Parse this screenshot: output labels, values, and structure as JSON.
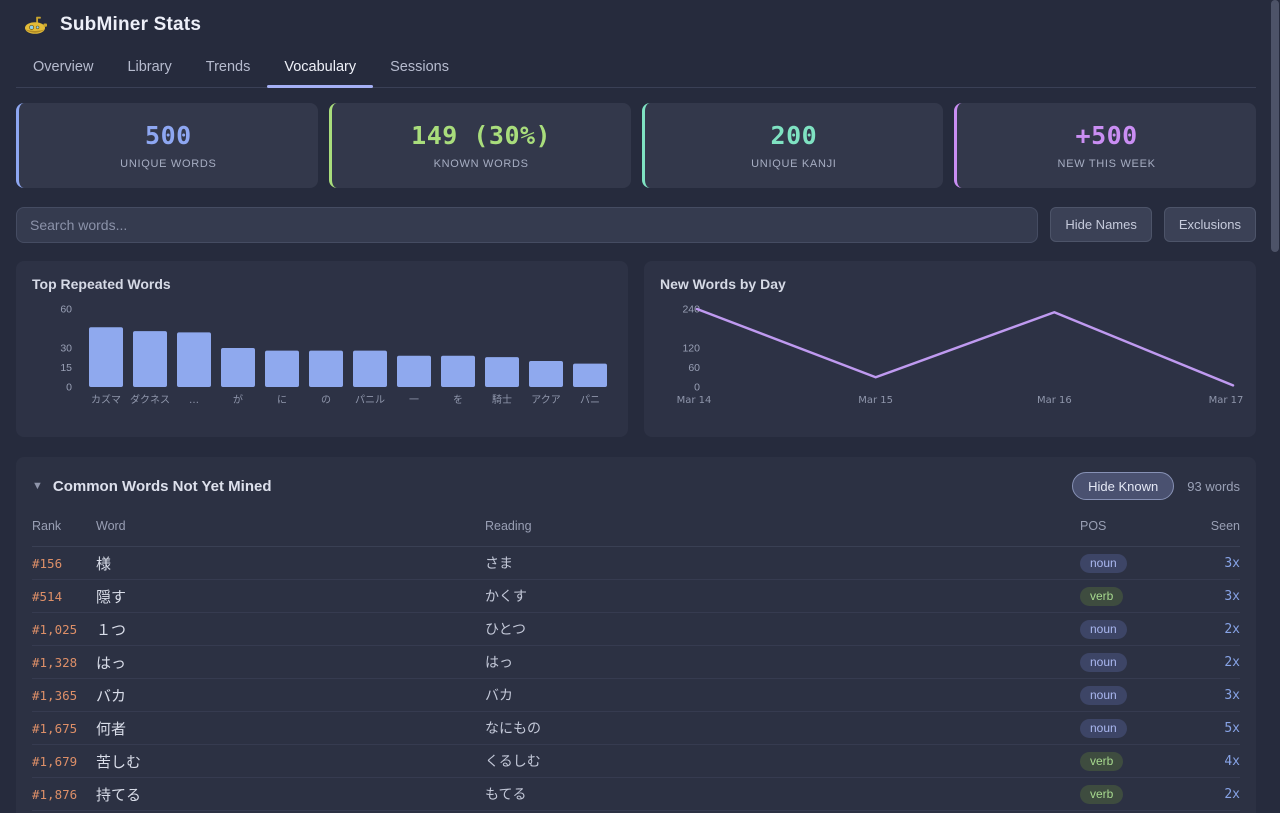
{
  "header": {
    "title": "SubMiner Stats",
    "icon": "submarine-icon"
  },
  "tabs": [
    {
      "label": "Overview",
      "active": false
    },
    {
      "label": "Library",
      "active": false
    },
    {
      "label": "Trends",
      "active": false
    },
    {
      "label": "Vocabulary",
      "active": true
    },
    {
      "label": "Sessions",
      "active": false
    }
  ],
  "stats": [
    {
      "value": "500",
      "label": "UNIQUE WORDS",
      "accent": "#8ea7f2"
    },
    {
      "value": "149 (30%)",
      "label": "KNOWN WORDS",
      "accent": "#a9dd7c"
    },
    {
      "value": "200",
      "label": "UNIQUE KANJI",
      "accent": "#7fe2c2"
    },
    {
      "value": "+500",
      "label": "NEW THIS WEEK",
      "accent": "#ca8ef3"
    }
  ],
  "search": {
    "placeholder": "Search words...",
    "hide_names": "Hide Names",
    "exclusions": "Exclusions"
  },
  "chart_data": [
    {
      "type": "bar",
      "title": "Top Repeated Words",
      "categories": [
        "カズマ",
        "ダクネス",
        "…",
        "が",
        "に",
        "の",
        "パニル",
        "一",
        "を",
        "騎士",
        "アクア",
        "パニ"
      ],
      "values": [
        46,
        43,
        42,
        30,
        28,
        28,
        28,
        24,
        24,
        23,
        20,
        18
      ],
      "yticks": [
        0,
        15,
        30,
        60
      ],
      "ylim": [
        0,
        60
      ],
      "xlabel": "",
      "ylabel": "",
      "grid": false,
      "legend": "none",
      "bar_color": "#8fa9ee"
    },
    {
      "type": "line",
      "title": "New Words by Day",
      "x": [
        "Mar 14",
        "Mar 15",
        "Mar 16",
        "Mar 17"
      ],
      "values": [
        240,
        30,
        230,
        5
      ],
      "yticks": [
        0,
        60,
        120,
        240
      ],
      "ylim": [
        0,
        240
      ],
      "xlabel": "",
      "ylabel": "",
      "grid": false,
      "legend": "none",
      "line_color": "#bf9af0"
    }
  ],
  "table": {
    "collapse_icon": "▼",
    "title": "Common Words Not Yet Mined",
    "hide_known": "Hide Known",
    "count": "93 words",
    "columns": [
      "Rank",
      "Word",
      "Reading",
      "POS",
      "Seen"
    ],
    "rows": [
      {
        "rank": "#156",
        "word": "様",
        "reading": "さま",
        "pos": "noun",
        "seen": "3x"
      },
      {
        "rank": "#514",
        "word": "隠す",
        "reading": "かくす",
        "pos": "verb",
        "seen": "3x"
      },
      {
        "rank": "#1,025",
        "word": "１つ",
        "reading": "ひとつ",
        "pos": "noun",
        "seen": "2x"
      },
      {
        "rank": "#1,328",
        "word": "はっ",
        "reading": "はっ",
        "pos": "noun",
        "seen": "2x"
      },
      {
        "rank": "#1,365",
        "word": "バカ",
        "reading": "バカ",
        "pos": "noun",
        "seen": "3x"
      },
      {
        "rank": "#1,675",
        "word": "何者",
        "reading": "なにもの",
        "pos": "noun",
        "seen": "5x"
      },
      {
        "rank": "#1,679",
        "word": "苦しむ",
        "reading": "くるしむ",
        "pos": "verb",
        "seen": "4x"
      },
      {
        "rank": "#1,876",
        "word": "持てる",
        "reading": "もてる",
        "pos": "verb",
        "seen": "2x"
      }
    ]
  },
  "colors": {
    "background": "#262b3d",
    "card": "#2d3245",
    "stat_card": "#33384b",
    "tab_underline": "#a5b0f6",
    "rank": "#dd8f68",
    "seen": "#87a3e6",
    "pos": {
      "noun": {
        "bg": "#3d4566",
        "text": "#aab7f0"
      },
      "verb": {
        "bg": "#3e4c3f",
        "text": "#a6d88e"
      }
    }
  }
}
